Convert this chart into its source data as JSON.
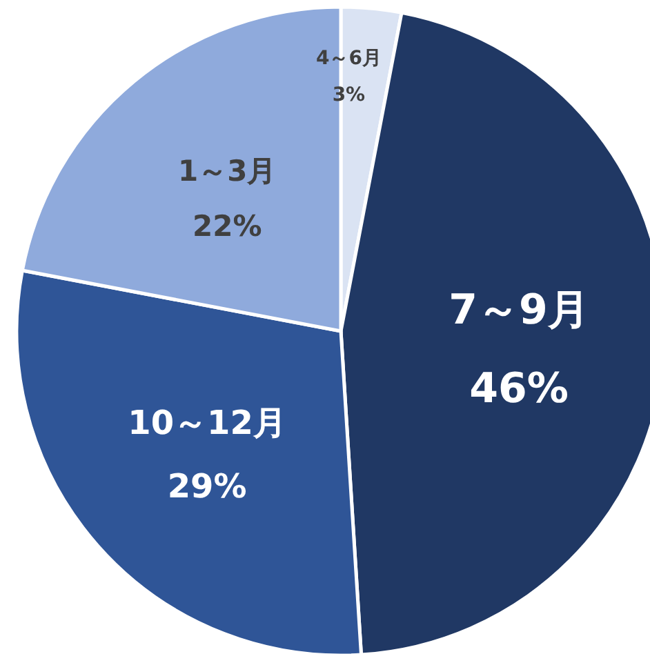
{
  "chart_data": {
    "type": "pie",
    "categories": [
      "4～6月",
      "7～9月",
      "10～12月",
      "1～3月"
    ],
    "values": [
      3,
      46,
      29,
      22
    ],
    "colors": [
      "#dae3f3",
      "#203864",
      "#2f5597",
      "#8faadc"
    ],
    "value_labels": [
      "3%",
      "46%",
      "29%",
      "22%"
    ]
  }
}
